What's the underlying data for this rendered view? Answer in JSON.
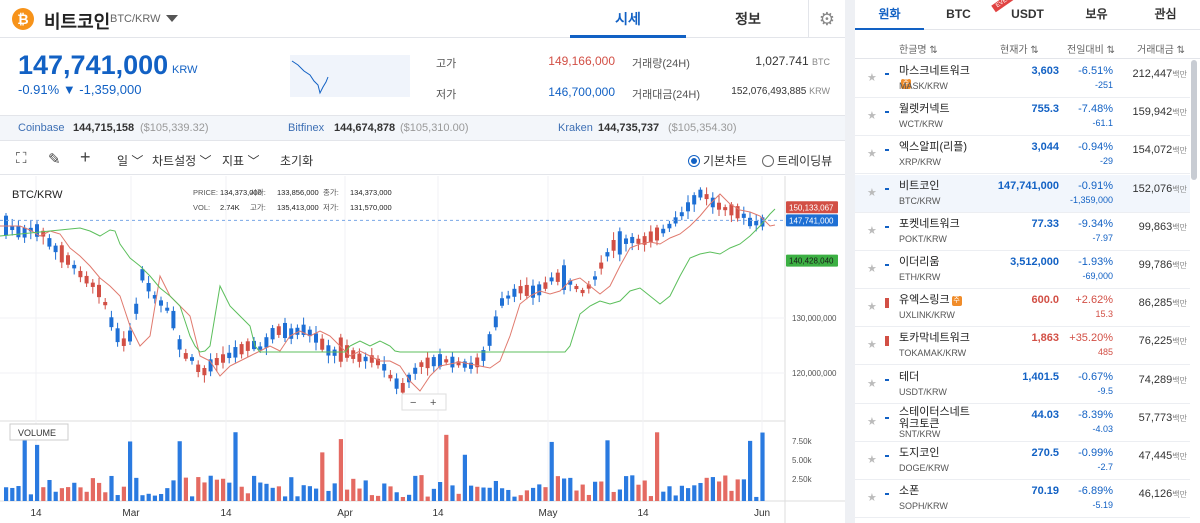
{
  "coin": {
    "name": "비트코인",
    "logo": "₿",
    "pair": "BTC/KRW"
  },
  "tabs": [
    "시세",
    "정보"
  ],
  "price": {
    "value": "147,741,000",
    "unit": "KRW",
    "change_pct": "-0.91%",
    "change_amt": "▼ -1,359,000"
  },
  "stats": {
    "high_label": "고가",
    "high": "149,166,000",
    "low_label": "저가",
    "low": "146,700,000",
    "vol_label": "거래량(24H)",
    "vol": "1,027.741",
    "vol_unit": "BTC",
    "amt_label": "거래대금(24H)",
    "amt": "152,076,493,885",
    "amt_unit": "KRW"
  },
  "exchanges": [
    {
      "name": "Coinbase",
      "krw": "144,715,158",
      "usd": "($105,339.32)"
    },
    {
      "name": "Bitfinex",
      "krw": "144,674,878",
      "usd": "($105,310.00)"
    },
    {
      "name": "Kraken",
      "krw": "144,735,737",
      "usd": "($105,354.30)"
    }
  ],
  "toolbar": {
    "period": "일",
    "settings": "차트설정",
    "indicator": "지표",
    "reset": "초기화",
    "basic_chart": "기본차트",
    "tradingview": "트레이딩뷰"
  },
  "chart_info": {
    "pair": "BTC/KRW",
    "row1": [
      [
        "PRICE:",
        "134,373,000"
      ],
      [
        "시가:",
        "133,856,000"
      ],
      [
        "종가:",
        "134,373,000"
      ]
    ],
    "row2": [
      [
        "VOL:",
        "2.74K"
      ],
      [
        "고가:",
        "135,413,000"
      ],
      [
        "저가:",
        "131,570,000"
      ]
    ],
    "volume_label": "VOLUME",
    "zoom_minus": "−",
    "zoom_plus": "+"
  },
  "chart_data": {
    "type": "candlestick",
    "y_ticks": [
      "130,000,000",
      "120,000,000"
    ],
    "y_tick_values": [
      130000000,
      120000000
    ],
    "price_tags": [
      {
        "text": "150,133,067",
        "color": "#d24f45",
        "value": 150133067
      },
      {
        "text": "147,741,000",
        "color": "#1e6fd4",
        "value": 147741000
      },
      {
        "text": "140,428,040",
        "color": "#3cb043",
        "value": 140428040
      }
    ],
    "vol_ticks": [
      "7.50k",
      "5.00k",
      "2.50k"
    ],
    "x_labels": [
      "14",
      "Mar",
      "14",
      "Apr",
      "14",
      "May",
      "14",
      "Jun"
    ],
    "ma_colors": {
      "short": "#e07a6e",
      "long": "#5cbf5c"
    }
  },
  "right_tabs": [
    "원화",
    "BTC",
    "USDT",
    "보유",
    "관심"
  ],
  "right_badge": "EVENT",
  "table_head": [
    "한글명 ⇅",
    "현재가 ⇅",
    "전일대비 ⇅",
    "거래대금 ⇅"
  ],
  "vol_unit": "백만",
  "rows": [
    {
      "name": "마스크네트워크",
      "warn": true,
      "sym": "MASK/KRW",
      "price": "3,603",
      "pct": "-6.51%",
      "amt": "-251",
      "vol": "212,447",
      "dir": "dn"
    },
    {
      "name": "월렛커넥트",
      "warn": false,
      "sym": "WCT/KRW",
      "price": "755.3",
      "pct": "-7.48%",
      "amt": "-61.1",
      "vol": "159,942",
      "dir": "dn"
    },
    {
      "name": "엑스알피(리플)",
      "warn": false,
      "sym": "XRP/KRW",
      "price": "3,044",
      "pct": "-0.94%",
      "amt": "-29",
      "vol": "154,072",
      "dir": "dn"
    },
    {
      "name": "비트코인",
      "warn": false,
      "sym": "BTC/KRW",
      "price": "147,741,000",
      "pct": "-0.91%",
      "amt": "-1,359,000",
      "vol": "152,076",
      "dir": "dn"
    },
    {
      "name": "포켓네트워크",
      "warn": false,
      "sym": "POKT/KRW",
      "price": "77.33",
      "pct": "-9.34%",
      "amt": "-7.97",
      "vol": "99,863",
      "dir": "dn"
    },
    {
      "name": "이더리움",
      "warn": false,
      "sym": "ETH/KRW",
      "price": "3,512,000",
      "pct": "-1.93%",
      "amt": "-69,000",
      "vol": "99,786",
      "dir": "dn"
    },
    {
      "name": "유엑스링크",
      "warn": true,
      "sym": "UXLINK/KRW",
      "price": "600.0",
      "pct": "+2.62%",
      "amt": "15.3",
      "vol": "86,285",
      "dir": "up"
    },
    {
      "name": "토카막네트워크",
      "warn": false,
      "sym": "TOKAMAK/KRW",
      "price": "1,863",
      "pct": "+35.20%",
      "amt": "485",
      "vol": "76,225",
      "dir": "up"
    },
    {
      "name": "테더",
      "warn": false,
      "sym": "USDT/KRW",
      "price": "1,401.5",
      "pct": "-0.67%",
      "amt": "-9.5",
      "vol": "74,289",
      "dir": "dn"
    },
    {
      "name": "스테이터스네트워크토큰",
      "warn": false,
      "sym": "SNT/KRW",
      "price": "44.03",
      "pct": "-8.39%",
      "amt": "-4.03",
      "vol": "57,773",
      "dir": "dn"
    },
    {
      "name": "도지코인",
      "warn": false,
      "sym": "DOGE/KRW",
      "price": "270.5",
      "pct": "-0.99%",
      "amt": "-2.7",
      "vol": "47,445",
      "dir": "dn"
    },
    {
      "name": "소폰",
      "warn": false,
      "sym": "SOPH/KRW",
      "price": "70.19",
      "pct": "-6.89%",
      "amt": "-5.19",
      "vol": "46,126",
      "dir": "dn"
    }
  ],
  "icons": {
    "gear": "⚙",
    "fullscreen": "⛶",
    "pencil": "✎",
    "crosshair": "+",
    "star": "★",
    "caret": "﹀"
  }
}
